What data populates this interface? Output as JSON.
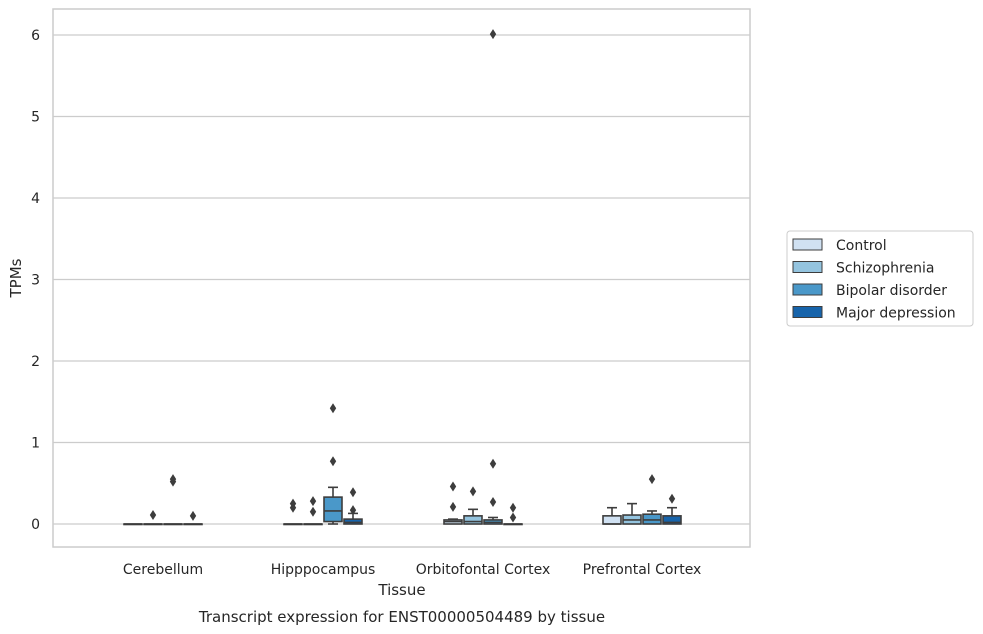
{
  "caption": "Transcript expression for ENST00000504489 by tissue",
  "chart_data": {
    "type": "box",
    "xlabel": "Tissue",
    "ylabel": "TPMs",
    "categories": [
      "Cerebellum",
      "Hipppocampus",
      "Orbitofontal Cortex",
      "Prefrontal Cortex"
    ],
    "yticks": [
      0,
      1,
      2,
      3,
      4,
      5,
      6
    ],
    "ylim": [
      -0.3,
      6.3
    ],
    "grid": true,
    "legend_position": "right",
    "series": [
      {
        "name": "Control",
        "color": "#d0e1f2",
        "boxes": [
          {
            "q1": 0,
            "median": 0,
            "q3": 0,
            "whisker_low": 0,
            "whisker_high": 0,
            "outliers": []
          },
          {
            "q1": 0,
            "median": 0,
            "q3": 0,
            "whisker_low": 0,
            "whisker_high": 0,
            "outliers": [
              0.2,
              0.25
            ]
          },
          {
            "q1": 0,
            "median": 0.03,
            "q3": 0.05,
            "whisker_low": 0,
            "whisker_high": 0.06,
            "outliers": [
              0.21,
              0.46
            ]
          },
          {
            "q1": 0,
            "median": 0,
            "q3": 0.1,
            "whisker_low": 0,
            "whisker_high": 0.2,
            "outliers": []
          }
        ]
      },
      {
        "name": "Schizophrenia",
        "color": "#94c4df",
        "boxes": [
          {
            "q1": 0,
            "median": 0,
            "q3": 0,
            "whisker_low": 0,
            "whisker_high": 0,
            "outliers": [
              0.11
            ]
          },
          {
            "q1": 0,
            "median": 0,
            "q3": 0,
            "whisker_low": 0,
            "whisker_high": 0,
            "outliers": [
              0.15,
              0.28
            ]
          },
          {
            "q1": 0,
            "median": 0.03,
            "q3": 0.1,
            "whisker_low": 0,
            "whisker_high": 0.18,
            "outliers": [
              0.4
            ]
          },
          {
            "q1": 0,
            "median": 0.05,
            "q3": 0.11,
            "whisker_low": 0,
            "whisker_high": 0.25,
            "outliers": []
          }
        ]
      },
      {
        "name": "Bipolar disorder",
        "color": "#4a98c9",
        "boxes": [
          {
            "q1": 0,
            "median": 0,
            "q3": 0,
            "whisker_low": 0,
            "whisker_high": 0,
            "outliers": [
              0.52,
              0.55
            ]
          },
          {
            "q1": 0.03,
            "median": 0.16,
            "q3": 0.33,
            "whisker_low": 0,
            "whisker_high": 0.45,
            "outliers": [
              0.77,
              1.42
            ]
          },
          {
            "q1": 0,
            "median": 0.02,
            "q3": 0.05,
            "whisker_low": 0,
            "whisker_high": 0.08,
            "outliers": [
              0.27,
              0.74,
              6.01
            ]
          },
          {
            "q1": 0,
            "median": 0.05,
            "q3": 0.12,
            "whisker_low": 0,
            "whisker_high": 0.16,
            "outliers": [
              0.55
            ]
          }
        ]
      },
      {
        "name": "Major depression",
        "color": "#1764ab",
        "boxes": [
          {
            "q1": 0,
            "median": 0,
            "q3": 0,
            "whisker_low": 0,
            "whisker_high": 0,
            "outliers": [
              0.1
            ]
          },
          {
            "q1": 0,
            "median": 0.02,
            "q3": 0.06,
            "whisker_low": 0,
            "whisker_high": 0.13,
            "outliers": [
              0.17,
              0.39
            ]
          },
          {
            "q1": 0,
            "median": 0,
            "q3": 0,
            "whisker_low": 0,
            "whisker_high": 0,
            "outliers": [
              0.08,
              0.2
            ]
          },
          {
            "q1": 0,
            "median": 0.02,
            "q3": 0.1,
            "whisker_low": 0,
            "whisker_high": 0.2,
            "outliers": [
              0.31
            ]
          }
        ]
      }
    ]
  }
}
